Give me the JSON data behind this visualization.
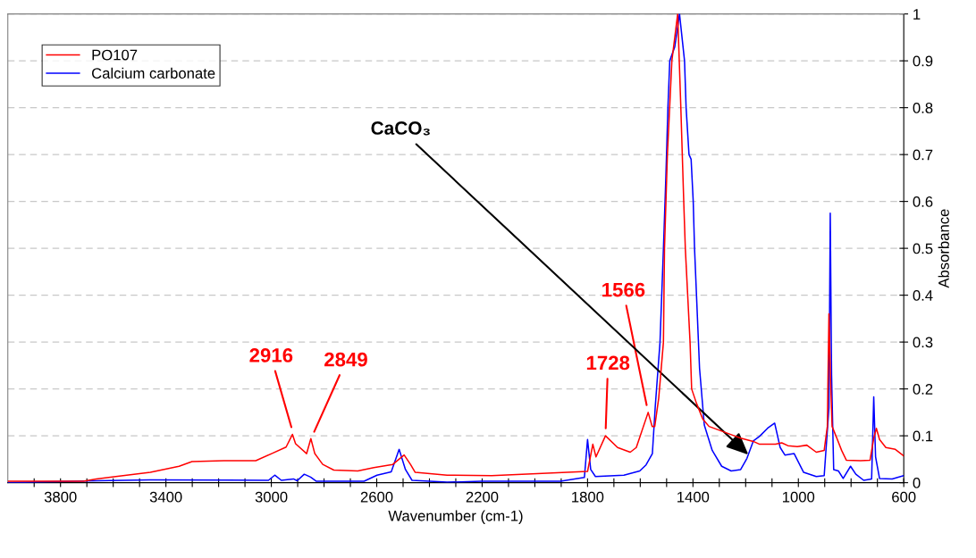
{
  "chart_data": {
    "type": "line",
    "xlabel": "Wavenumber (cm-1)",
    "ylabel": "Absorbance",
    "xlim": [
      4000,
      600
    ],
    "ylim": [
      0,
      1
    ],
    "xticks": [
      {
        "value": 3900,
        "label": null
      },
      3800,
      {
        "value": 3700,
        "label": null
      },
      {
        "value": 3600,
        "label": null
      },
      {
        "value": 3500,
        "label": null
      },
      3400,
      {
        "value": 3300,
        "label": null
      },
      {
        "value": 3200,
        "label": null
      },
      {
        "value": 3100,
        "label": null
      },
      3000,
      {
        "value": 2900,
        "label": null
      },
      {
        "value": 2800,
        "label": null
      },
      {
        "value": 2700,
        "label": null
      },
      2600,
      {
        "value": 2500,
        "label": null
      },
      {
        "value": 2400,
        "label": null
      },
      {
        "value": 2300,
        "label": null
      },
      2200,
      {
        "value": 2100,
        "label": null
      },
      {
        "value": 2000,
        "label": null
      },
      {
        "value": 1900,
        "label": null
      },
      1800,
      {
        "value": 1700,
        "label": null
      },
      {
        "value": 1600,
        "label": null
      },
      {
        "value": 1500,
        "label": null
      },
      1400,
      {
        "value": 1300,
        "label": null
      },
      {
        "value": 1200,
        "label": null
      },
      {
        "value": 1100,
        "label": null
      },
      1000,
      {
        "value": 900,
        "label": null
      },
      {
        "value": 800,
        "label": null
      },
      {
        "value": 700,
        "label": null
      },
      600
    ],
    "yticks": [
      0,
      0.1,
      0.2,
      0.3,
      0.4,
      0.5,
      0.6,
      0.7,
      0.8,
      0.9,
      1
    ],
    "grid": "y",
    "legend": "top left",
    "marker": "none",
    "line_style": "solid",
    "series": [
      {
        "name": "PO107",
        "color": "#ff0000",
        "x": [
          4000,
          3713,
          3664,
          3604,
          3459,
          3350,
          3301,
          3180,
          3059,
          2999,
          2944,
          2920,
          2908,
          2866,
          2850,
          2835,
          2805,
          2763,
          2672,
          2611,
          2539,
          2496,
          2472,
          2454,
          2333,
          2164,
          1800,
          1780,
          1768,
          1732,
          1686,
          1638,
          1615,
          1570,
          1555,
          1545,
          1530,
          1512,
          1508,
          1497,
          1480,
          1458,
          1452,
          1446,
          1435,
          1429,
          1411,
          1405,
          1387,
          1363,
          1339,
          1291,
          1243,
          1219,
          1171,
          1147,
          1087,
          1063,
          1040,
          1004,
          968,
          932,
          902,
          890,
          884,
          878,
          872,
          854,
          836,
          818,
          764,
          728,
          714,
          704,
          692,
          668,
          632,
          600
        ],
        "values": [
          0.003,
          0.003,
          0.008,
          0.012,
          0.022,
          0.035,
          0.045,
          0.047,
          0.047,
          0.062,
          0.076,
          0.103,
          0.083,
          0.062,
          0.094,
          0.062,
          0.039,
          0.027,
          0.025,
          0.032,
          0.039,
          0.059,
          0.039,
          0.022,
          0.016,
          0.015,
          0.024,
          0.082,
          0.055,
          0.1,
          0.075,
          0.065,
          0.075,
          0.15,
          0.12,
          0.12,
          0.18,
          0.3,
          0.5,
          0.7,
          0.9,
          1.0,
          0.9,
          0.8,
          0.6,
          0.5,
          0.3,
          0.2,
          0.17,
          0.136,
          0.12,
          0.11,
          0.1,
          0.095,
          0.088,
          0.082,
          0.082,
          0.085,
          0.079,
          0.077,
          0.08,
          0.065,
          0.069,
          0.12,
          0.36,
          0.22,
          0.12,
          0.095,
          0.069,
          0.048,
          0.047,
          0.048,
          0.095,
          0.116,
          0.092,
          0.075,
          0.071,
          0.057
        ]
      },
      {
        "name": "Calcium carbonate",
        "color": "#0000ff",
        "x": [
          4000,
          3664,
          3459,
          3011,
          2987,
          2962,
          2916,
          2902,
          2875,
          2851,
          2829,
          2648,
          2599,
          2545,
          2515,
          2491,
          2466,
          2333,
          2201,
          1902,
          1812,
          1800,
          1788,
          1770,
          1662,
          1602,
          1578,
          1554,
          1543,
          1525,
          1512,
          1503,
          1495,
          1488,
          1469,
          1451,
          1432,
          1426,
          1415,
          1407,
          1399,
          1394,
          1375,
          1357,
          1327,
          1291,
          1255,
          1219,
          1195,
          1171,
          1147,
          1117,
          1090,
          1069,
          1051,
          1016,
          980,
          932,
          902,
          884,
          879,
          874,
          866,
          848,
          830,
          802,
          782,
          752,
          722,
          714,
          707,
          692,
          644,
          600
        ],
        "values": [
          0.0,
          0.004,
          0.006,
          0.005,
          0.016,
          0.005,
          0.008,
          0.004,
          0.018,
          0.012,
          0.003,
          0.003,
          0.016,
          0.023,
          0.071,
          0.028,
          0.005,
          0.001,
          0.003,
          0.003,
          0.011,
          0.092,
          0.028,
          0.013,
          0.016,
          0.025,
          0.038,
          0.062,
          0.163,
          0.3,
          0.5,
          0.65,
          0.8,
          0.9,
          0.93,
          1.0,
          0.9,
          0.8,
          0.7,
          0.69,
          0.6,
          0.5,
          0.244,
          0.123,
          0.069,
          0.035,
          0.025,
          0.028,
          0.052,
          0.089,
          0.099,
          0.116,
          0.127,
          0.075,
          0.059,
          0.062,
          0.022,
          0.013,
          0.015,
          0.16,
          0.575,
          0.23,
          0.028,
          0.025,
          0.009,
          0.035,
          0.018,
          0.005,
          0.008,
          0.183,
          0.055,
          0.009,
          0.008,
          0.015
        ]
      }
    ],
    "annotations": [
      {
        "text": "2916",
        "x": 2916,
        "y": 0.103
      },
      {
        "text": "2849",
        "x": 2849,
        "y": 0.094
      },
      {
        "text": "1728",
        "x": 1732,
        "y": 0.1
      },
      {
        "text": "1566",
        "x": 1570,
        "y": 0.15
      },
      {
        "text": "CaCO₃",
        "x": 1190,
        "y": 0.06
      }
    ]
  }
}
